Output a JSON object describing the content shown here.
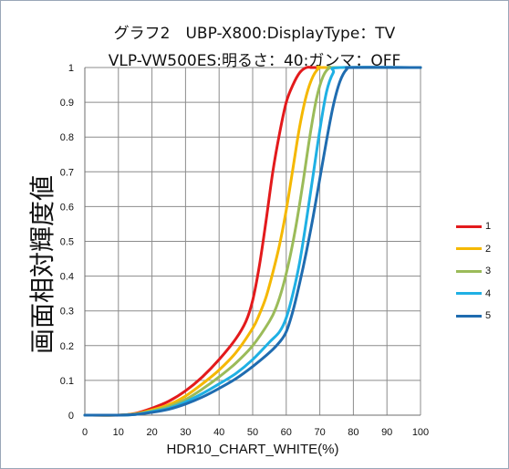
{
  "chart_data": {
    "type": "line",
    "title": "グラフ2　UBP-X800:DisplayType：TV",
    "subtitle": "VLP-VW500ES:明るさ：40:ガンマ：OFF",
    "xlabel": "HDR10_CHART_WHITE(%)",
    "ylabel": "画面相対輝度値",
    "xlim": [
      0,
      100
    ],
    "ylim": [
      0,
      1
    ],
    "xticks": [
      "0",
      "10",
      "20",
      "30",
      "40",
      "50",
      "60",
      "70",
      "80",
      "90",
      "100"
    ],
    "yticks": [
      "0",
      "0.1",
      "0.2",
      "0.3",
      "0.4",
      "0.5",
      "0.6",
      "0.7",
      "0.8",
      "0.9",
      "1"
    ],
    "grid": true,
    "legend_position": "right",
    "series": [
      {
        "name": "1",
        "color": "#e31a1c",
        "x": [
          0,
          10,
          15,
          20,
          25,
          30,
          35,
          40,
          45,
          48,
          50,
          52,
          54,
          56,
          58,
          60,
          62,
          64,
          66,
          68,
          70,
          100
        ],
        "y": [
          0,
          0,
          0.005,
          0.02,
          0.04,
          0.07,
          0.11,
          0.16,
          0.22,
          0.27,
          0.33,
          0.43,
          0.56,
          0.7,
          0.81,
          0.9,
          0.95,
          0.985,
          1,
          1,
          1,
          1
        ]
      },
      {
        "name": "2",
        "color": "#f5b800",
        "x": [
          0,
          10,
          15,
          20,
          25,
          30,
          35,
          40,
          45,
          50,
          52,
          54,
          56,
          58,
          60,
          62,
          64,
          66,
          68,
          70,
          72,
          100
        ],
        "y": [
          0,
          0,
          0.004,
          0.015,
          0.03,
          0.055,
          0.09,
          0.13,
          0.18,
          0.25,
          0.29,
          0.34,
          0.41,
          0.49,
          0.59,
          0.71,
          0.83,
          0.92,
          0.975,
          1,
          1,
          1
        ]
      },
      {
        "name": "3",
        "color": "#9bbb59",
        "x": [
          0,
          10,
          15,
          20,
          25,
          30,
          35,
          40,
          45,
          50,
          55,
          57,
          59,
          61,
          63,
          65,
          67,
          69,
          71,
          73,
          75,
          100
        ],
        "y": [
          0,
          0,
          0.003,
          0.012,
          0.025,
          0.045,
          0.075,
          0.11,
          0.15,
          0.2,
          0.27,
          0.31,
          0.37,
          0.45,
          0.55,
          0.67,
          0.8,
          0.91,
          0.975,
          1,
          1,
          1
        ]
      },
      {
        "name": "4",
        "color": "#1fb0e4",
        "x": [
          0,
          10,
          15,
          20,
          25,
          30,
          35,
          40,
          45,
          50,
          55,
          58,
          60,
          62,
          64,
          66,
          68,
          70,
          72,
          74,
          76,
          100
        ],
        "y": [
          0,
          0,
          0.002,
          0.01,
          0.02,
          0.038,
          0.062,
          0.09,
          0.12,
          0.16,
          0.21,
          0.24,
          0.28,
          0.35,
          0.44,
          0.56,
          0.69,
          0.82,
          0.93,
          0.985,
          1,
          1
        ]
      },
      {
        "name": "5",
        "color": "#1f6cb0",
        "x": [
          0,
          10,
          15,
          20,
          25,
          30,
          35,
          40,
          45,
          50,
          55,
          58,
          60,
          62,
          64,
          66,
          68,
          70,
          72,
          74,
          76,
          78,
          80,
          100
        ],
        "y": [
          0,
          0,
          0.002,
          0.008,
          0.017,
          0.032,
          0.052,
          0.077,
          0.105,
          0.14,
          0.18,
          0.21,
          0.24,
          0.3,
          0.38,
          0.47,
          0.57,
          0.68,
          0.79,
          0.89,
          0.96,
          0.995,
          1,
          1
        ]
      }
    ]
  }
}
